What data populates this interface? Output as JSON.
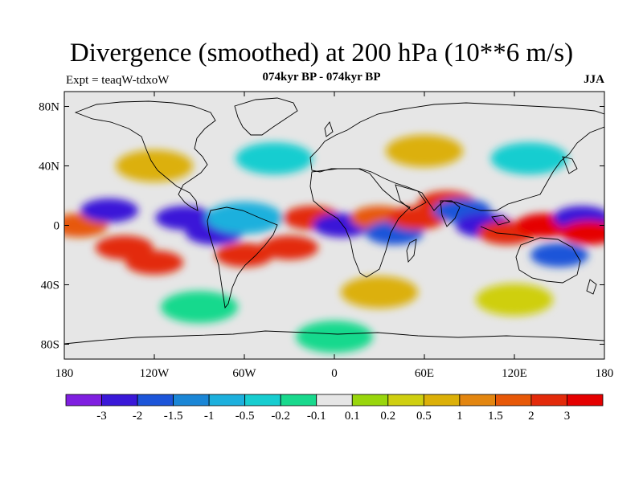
{
  "title": "Divergence (smoothed) at 200 hPa (10**6 m/s)",
  "subtitle": "074kyr BP - 074kyr BP",
  "experiment": "Expt = teaqW-tdxoW",
  "season": "JJA",
  "map": {
    "projection": "cylindrical equidistant",
    "lon_range": [
      -180,
      180
    ],
    "lat_range": [
      -90,
      90
    ],
    "y_tick_labels": [
      "80N",
      "40N",
      "0",
      "40S",
      "80S"
    ],
    "y_tick_values": [
      80,
      40,
      0,
      -40,
      -80
    ],
    "x_tick_labels": [
      "180",
      "120W",
      "60W",
      "0",
      "60E",
      "120E",
      "180"
    ],
    "x_tick_values": [
      -180,
      -120,
      -60,
      0,
      60,
      120,
      180
    ]
  },
  "chart_data": {
    "type": "heatmap",
    "title": "Divergence (smoothed) at 200 hPa (10**6 m/s)",
    "subtitle": "074kyr BP - 074kyr BP",
    "colorbar": {
      "labels": [
        "-3",
        "-2",
        "-1.5",
        "-1",
        "-0.5",
        "-0.2",
        "-0.1",
        "0.1",
        "0.2",
        "0.5",
        "1",
        "1.5",
        "2",
        "3"
      ],
      "colors": [
        "#7f1fe0",
        "#3a18d8",
        "#1c55d9",
        "#1a86d6",
        "#1cb0dd",
        "#17cdd0",
        "#19d98d",
        "#e6e6e6",
        "#99d60c",
        "#cfcf10",
        "#dcb008",
        "#e38610",
        "#e75808",
        "#e32a0a",
        "#e50000"
      ]
    },
    "cells": [
      {
        "lon": -170,
        "lat": 0,
        "value": 1.5
      },
      {
        "lon": -150,
        "lat": 10,
        "value": -3
      },
      {
        "lon": -140,
        "lat": -15,
        "value": 2
      },
      {
        "lon": -120,
        "lat": -25,
        "value": 2
      },
      {
        "lon": -100,
        "lat": 5,
        "value": -3
      },
      {
        "lon": -80,
        "lat": -5,
        "value": -3
      },
      {
        "lon": -60,
        "lat": 5,
        "value": -1
      },
      {
        "lon": -60,
        "lat": -20,
        "value": 2
      },
      {
        "lon": -30,
        "lat": -15,
        "value": 2
      },
      {
        "lon": -15,
        "lat": 5,
        "value": 2
      },
      {
        "lon": 5,
        "lat": 0,
        "value": -3
      },
      {
        "lon": 30,
        "lat": 5,
        "value": 1.5
      },
      {
        "lon": 40,
        "lat": -5,
        "value": -2
      },
      {
        "lon": 55,
        "lat": 5,
        "value": 2
      },
      {
        "lon": 75,
        "lat": 15,
        "value": 2
      },
      {
        "lon": 85,
        "lat": 10,
        "value": -2
      },
      {
        "lon": 100,
        "lat": 0,
        "value": -3
      },
      {
        "lon": 115,
        "lat": -5,
        "value": 2
      },
      {
        "lon": 140,
        "lat": 0,
        "value": 3
      },
      {
        "lon": 165,
        "lat": 5,
        "value": -3
      },
      {
        "lon": 170,
        "lat": -5,
        "value": 3
      },
      {
        "lon": 150,
        "lat": -20,
        "value": -2
      },
      {
        "lon": -120,
        "lat": 40,
        "value": 0.5
      },
      {
        "lon": -40,
        "lat": 45,
        "value": -0.5
      },
      {
        "lon": 60,
        "lat": 50,
        "value": 0.5
      },
      {
        "lon": 130,
        "lat": 45,
        "value": -0.5
      },
      {
        "lon": -90,
        "lat": -55,
        "value": -0.2
      },
      {
        "lon": 30,
        "lat": -45,
        "value": 0.5
      },
      {
        "lon": 120,
        "lat": -50,
        "value": 0.2
      },
      {
        "lon": 0,
        "lat": -75,
        "value": -0.2
      }
    ]
  }
}
